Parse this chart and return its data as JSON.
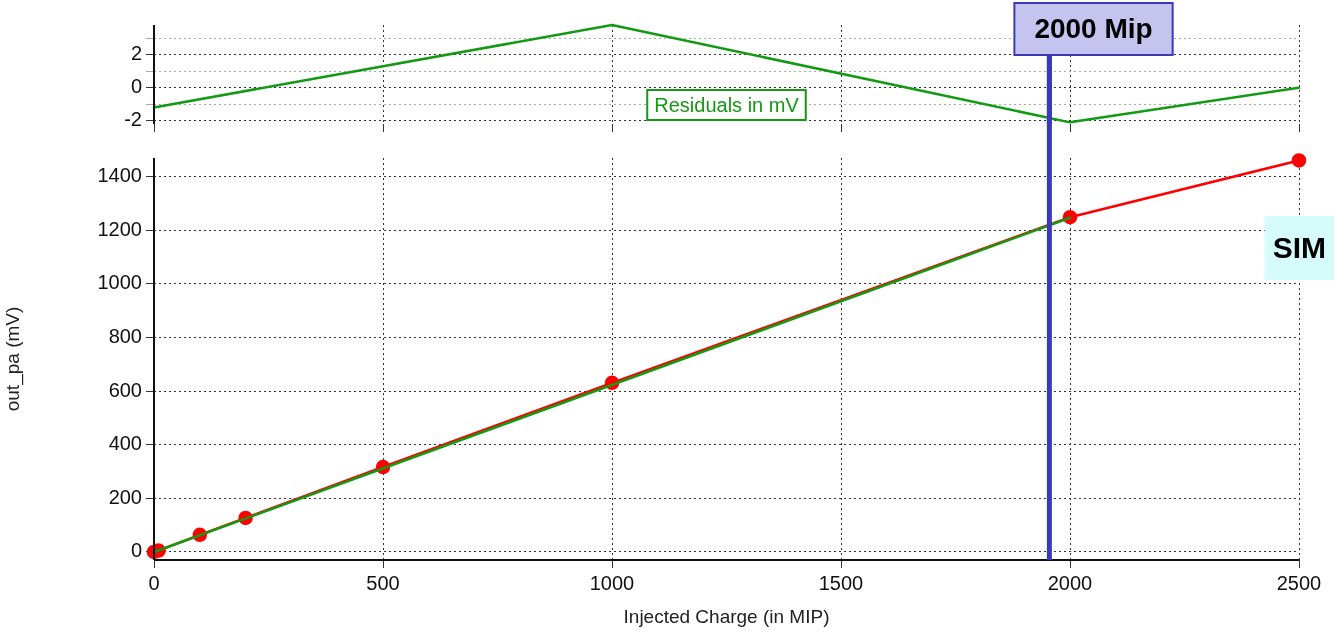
{
  "chart_data": [
    {
      "type": "line",
      "xlim": [
        0,
        2500
      ],
      "xticks": [
        0,
        500,
        1000,
        1500,
        2000,
        2500
      ],
      "ylim": [
        -2.2,
        3.8
      ],
      "yticks": [
        -2,
        {
          "value": -1,
          "label": null
        },
        0,
        {
          "value": 1,
          "label": null
        },
        2,
        {
          "value": 3,
          "label": null
        }
      ],
      "tick_labels": "y",
      "grid": true,
      "legend": "bottom",
      "ref_lines": [
        {
          "axis": "x",
          "value": 1955,
          "color": "#3a3ab8"
        }
      ],
      "series": [
        {
          "name": "Residuals in mV",
          "color": "#129a12",
          "x": [
            0,
            1000,
            2000,
            2500
          ],
          "values": [
            -1.2,
            3.8,
            -2.1,
            0
          ]
        }
      ]
    },
    {
      "type": "line",
      "xlabel": "Injected Charge (in MIP)",
      "ylabel": "out_pa (mV)",
      "xlim": [
        0,
        2500
      ],
      "xticks": [
        0,
        500,
        1000,
        1500,
        2000,
        2500
      ],
      "ylim": [
        -30,
        1470
      ],
      "yticks": [
        0,
        200,
        400,
        600,
        800,
        1000,
        1200,
        1400
      ],
      "grid": true,
      "series": [
        {
          "color": "#ff0000",
          "marker": "circle",
          "x": [
            0,
            10,
            100,
            200,
            500,
            1000,
            2000,
            2500
          ],
          "values": [
            0,
            5,
            64,
            127,
            317,
            631,
            1249,
            1461
          ]
        },
        {
          "color": "#129a12",
          "marker": "none",
          "x": [
            0,
            2000
          ],
          "values": [
            0,
            1247
          ]
        }
      ],
      "ref_lines": [
        {
          "axis": "x",
          "value": 1955,
          "label": "2000 Mip",
          "color": "#3a3ab8"
        }
      ],
      "annotations": [
        "SIM"
      ]
    }
  ]
}
